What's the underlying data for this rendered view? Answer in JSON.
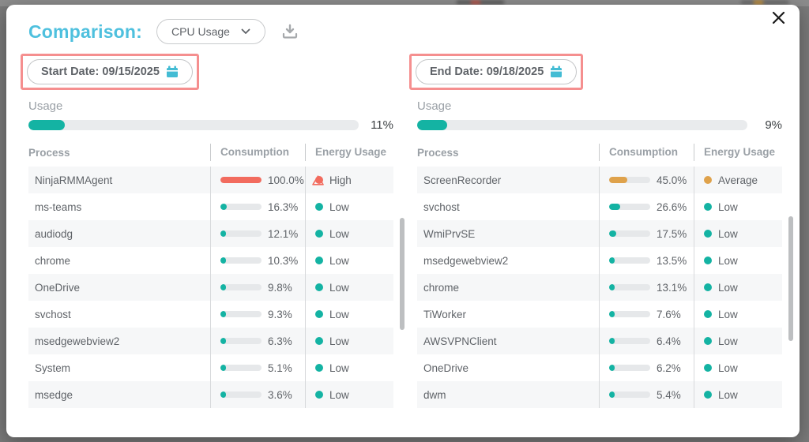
{
  "header": {
    "title": "Comparison:",
    "metric_selector": {
      "value": "CPU Usage",
      "icon": "chevron-down-icon"
    },
    "download_icon": "download-icon",
    "close_icon": "close-icon"
  },
  "colors": {
    "title_blue": "#4ec0de",
    "accent_teal": "#14b3a3",
    "alert_red": "#f26b5e",
    "warn_amber": "#dfa24b",
    "highlight_pink": "#f58f8f",
    "calendar_teal": "#43bcd4"
  },
  "level_colors": {
    "High": "#f26b5e",
    "Average": "#dfa24b",
    "Low": "#14b3a3"
  },
  "panels": [
    {
      "id": "start",
      "date_label": "Start Date: 09/15/2025",
      "date_icon": "calendar-icon",
      "usage_label": "Usage",
      "usage_percent": 11,
      "usage_percent_label": "11%",
      "columns": [
        "Process",
        "Consumption",
        "Energy Usage"
      ],
      "rows": [
        {
          "process": "NinjaRMMAgent",
          "consumption": "100.0%",
          "value": 100,
          "level": "High",
          "warning": true
        },
        {
          "process": "ms-teams",
          "consumption": "16.3%",
          "value": 16.3,
          "level": "Low"
        },
        {
          "process": "audiodg",
          "consumption": "12.1%",
          "value": 12.1,
          "level": "Low"
        },
        {
          "process": "chrome",
          "consumption": "10.3%",
          "value": 10.3,
          "level": "Low"
        },
        {
          "process": "OneDrive",
          "consumption": "9.8%",
          "value": 9.8,
          "level": "Low"
        },
        {
          "process": "svchost",
          "consumption": "9.3%",
          "value": 9.3,
          "level": "Low"
        },
        {
          "process": "msedgewebview2",
          "consumption": "6.3%",
          "value": 6.3,
          "level": "Low"
        },
        {
          "process": "System",
          "consumption": "5.1%",
          "value": 5.1,
          "level": "Low"
        },
        {
          "process": "msedge",
          "consumption": "3.6%",
          "value": 3.6,
          "level": "Low"
        }
      ]
    },
    {
      "id": "end",
      "date_label": "End Date: 09/18/2025",
      "date_icon": "calendar-icon",
      "usage_label": "Usage",
      "usage_percent": 9,
      "usage_percent_label": "9%",
      "columns": [
        "Process",
        "Consumption",
        "Energy Usage"
      ],
      "rows": [
        {
          "process": "ScreenRecorder",
          "consumption": "45.0%",
          "value": 45,
          "level": "Average"
        },
        {
          "process": "svchost",
          "consumption": "26.6%",
          "value": 26.6,
          "level": "Low"
        },
        {
          "process": "WmiPrvSE",
          "consumption": "17.5%",
          "value": 17.5,
          "level": "Low"
        },
        {
          "process": "msedgewebview2",
          "consumption": "13.5%",
          "value": 13.5,
          "level": "Low"
        },
        {
          "process": "chrome",
          "consumption": "13.1%",
          "value": 13.1,
          "level": "Low"
        },
        {
          "process": "TiWorker",
          "consumption": "7.6%",
          "value": 7.6,
          "level": "Low"
        },
        {
          "process": "AWSVPNClient",
          "consumption": "6.4%",
          "value": 6.4,
          "level": "Low"
        },
        {
          "process": "OneDrive",
          "consumption": "6.2%",
          "value": 6.2,
          "level": "Low"
        },
        {
          "process": "dwm",
          "consumption": "5.4%",
          "value": 5.4,
          "level": "Low"
        }
      ]
    }
  ]
}
